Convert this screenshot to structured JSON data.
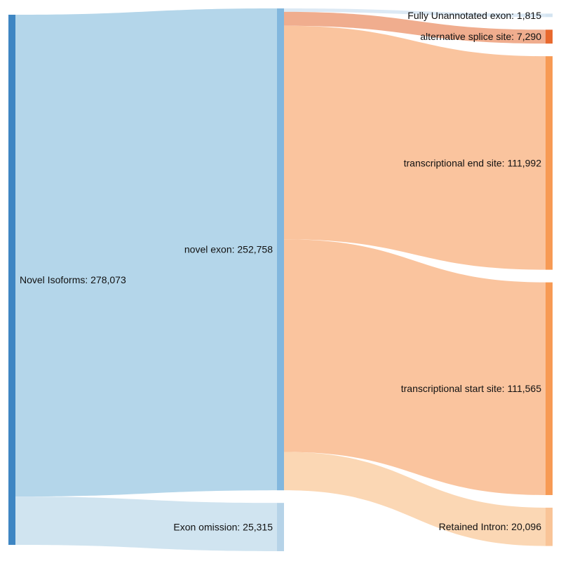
{
  "chart_data": {
    "type": "sankey",
    "nodes": [
      {
        "id": "novel_isoforms",
        "label": "Novel Isoforms: 278,073",
        "value": 278073,
        "column": 0,
        "color": "#3e86c3"
      },
      {
        "id": "novel_exon",
        "label": "novel exon: 252,758",
        "value": 252758,
        "column": 1,
        "color": "#82b7de"
      },
      {
        "id": "exon_omission",
        "label": "Exon omission: 25,315",
        "value": 25315,
        "column": 1,
        "color": "#b6d3e8"
      },
      {
        "id": "fully_unannotated",
        "label": "Fully Unannotated exon: 1,815",
        "value": 1815,
        "column": 2,
        "color": "#d4e4f1"
      },
      {
        "id": "alt_splice",
        "label": "alternative splice site: 7,290",
        "value": 7290,
        "column": 2,
        "color": "#e8692e"
      },
      {
        "id": "tes",
        "label": "transcriptional end site: 111,992",
        "value": 111992,
        "column": 2,
        "color": "#f79a54"
      },
      {
        "id": "tss",
        "label": "transcriptional start site: 111,565",
        "value": 111565,
        "column": 2,
        "color": "#f79a54"
      },
      {
        "id": "retained_intron",
        "label": "Retained Intron: 20,096",
        "value": 20096,
        "column": 2,
        "color": "#f9c497"
      }
    ],
    "links": [
      {
        "source": "novel_isoforms",
        "target": "novel_exon",
        "value": 252758,
        "color": "#b4d6ea"
      },
      {
        "source": "novel_isoforms",
        "target": "exon_omission",
        "value": 25315,
        "color": "#d0e4f0"
      },
      {
        "source": "novel_exon",
        "target": "fully_unannotated",
        "value": 1815,
        "color": "#dce9f4"
      },
      {
        "source": "novel_exon",
        "target": "alt_splice",
        "value": 7290,
        "color": "#f0ad8e"
      },
      {
        "source": "novel_exon",
        "target": "tes",
        "value": 111992,
        "color": "#fac49e"
      },
      {
        "source": "novel_exon",
        "target": "tss",
        "value": 111565,
        "color": "#fac49e"
      },
      {
        "source": "novel_exon",
        "target": "retained_intron",
        "value": 20096,
        "color": "#fbd7b4"
      }
    ]
  }
}
